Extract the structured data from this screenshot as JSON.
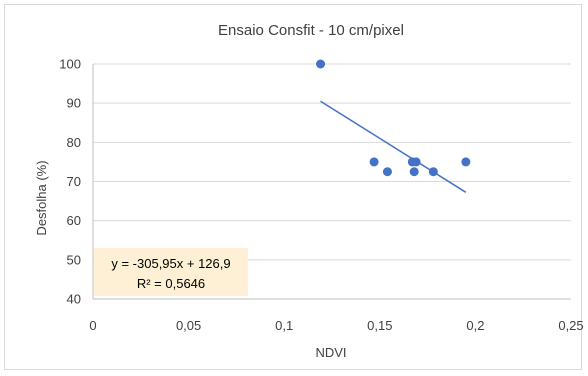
{
  "chart_data": {
    "type": "scatter",
    "title": "Ensaio Consfit - 10 cm/pixel",
    "xlabel": "NDVI",
    "ylabel": "Desfolha (%)",
    "xlim": [
      0,
      0.25
    ],
    "ylim": [
      40,
      100
    ],
    "x_ticks": [
      0,
      0.05,
      0.1,
      0.15,
      0.2,
      0.25
    ],
    "x_tick_labels": [
      "0",
      "0,05",
      "0,1",
      "0,15",
      "0,2",
      "0,25"
    ],
    "y_ticks": [
      40,
      50,
      60,
      70,
      80,
      90,
      100
    ],
    "y_tick_labels": [
      "40",
      "50",
      "60",
      "70",
      "80",
      "90",
      "100"
    ],
    "grid": "horizontal",
    "series": [
      {
        "color": "#4472c4",
        "points": [
          {
            "x": 0.119,
            "y": 100
          },
          {
            "x": 0.147,
            "y": 75
          },
          {
            "x": 0.154,
            "y": 72.5
          },
          {
            "x": 0.167,
            "y": 75
          },
          {
            "x": 0.169,
            "y": 75
          },
          {
            "x": 0.168,
            "y": 72.5
          },
          {
            "x": 0.178,
            "y": 72.5
          },
          {
            "x": 0.195,
            "y": 75
          }
        ]
      }
    ],
    "trendline": {
      "type": "linear",
      "slope": -305.95,
      "intercept": 126.9,
      "x_range": [
        0.119,
        0.195
      ],
      "color": "#4472c4",
      "equation_label": "y = -305,95x + 126,9",
      "r2_label": "R² = 0,5646",
      "label_background": "#fdf0d5"
    }
  }
}
